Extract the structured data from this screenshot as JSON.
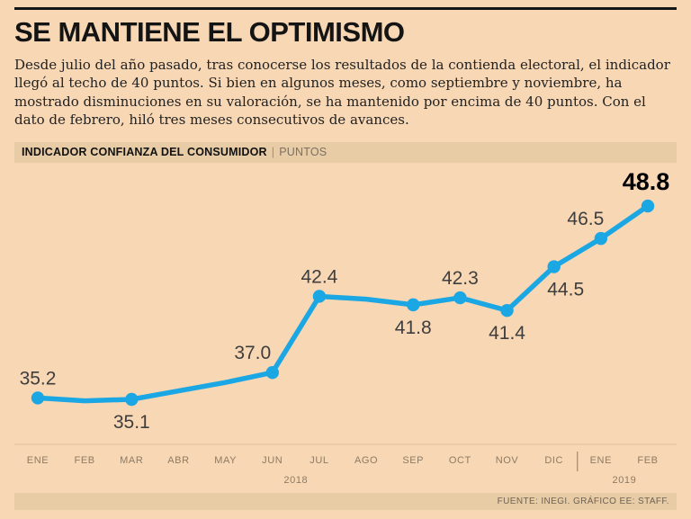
{
  "title": "SE MANTIENE EL OPTIMISMO",
  "description": "Desde julio del año pasado, tras conocerse los resultados de la contienda electoral, el indicador llegó al techo de 40 puntos. Si bien en algunos meses, como septiembre y noviembre, ha mostrado disminuciones en su valoración, se ha mantenido por encima de 40 puntos. Con el dato de febrero, hiló tres meses consecutivos de avances.",
  "chart_header": {
    "label": "INDICADOR CONFIANZA DEL CONSUMIDOR",
    "separator": "|",
    "units": "PUNTOS"
  },
  "footer": {
    "source": "FUENTE: INEGI. GRÁFICO EE: STAFF."
  },
  "colors": {
    "background": "#f8d7b4",
    "panel_bar": "#e7cca6",
    "line": "#1ba7e3",
    "data_label": "#3e3e3e",
    "data_label_emphasis": "#000000",
    "axis_text": "#8d7b63"
  },
  "chart_data": {
    "type": "line",
    "title": "INDICADOR CONFIANZA DEL CONSUMIDOR",
    "ylabel": "PUNTOS",
    "ylim": [
      34,
      50
    ],
    "grid": false,
    "legend": "none",
    "categories": [
      "ENE",
      "FEB",
      "MAR",
      "ABR",
      "MAY",
      "JUN",
      "JUL",
      "AGO",
      "SEP",
      "OCT",
      "NOV",
      "DIC",
      "ENE",
      "FEB"
    ],
    "values": [
      35.2,
      35.0,
      35.1,
      35.7,
      36.3,
      37.0,
      42.4,
      42.2,
      41.8,
      42.3,
      41.4,
      44.5,
      46.5,
      48.8
    ],
    "markers": [
      0,
      2,
      5,
      6,
      8,
      9,
      10,
      11,
      12,
      13
    ],
    "point_labels": [
      {
        "index": 0,
        "text": "35.2",
        "pos": "above",
        "dx": 0
      },
      {
        "index": 2,
        "text": "35.1",
        "pos": "below",
        "dx": 0
      },
      {
        "index": 5,
        "text": "37.0",
        "pos": "above",
        "dx": -22
      },
      {
        "index": 6,
        "text": "42.4",
        "pos": "above",
        "dx": 0
      },
      {
        "index": 8,
        "text": "41.8",
        "pos": "below",
        "dx": 0
      },
      {
        "index": 9,
        "text": "42.3",
        "pos": "above",
        "dx": 0
      },
      {
        "index": 10,
        "text": "41.4",
        "pos": "below",
        "dx": 0
      },
      {
        "index": 11,
        "text": "44.5",
        "pos": "below",
        "dx": 13
      },
      {
        "index": 12,
        "text": "46.5",
        "pos": "above",
        "dx": -17
      },
      {
        "index": 13,
        "text": "48.8",
        "pos": "above",
        "dx": -2,
        "emphasis": true
      }
    ],
    "year_groups": [
      {
        "label": "2018",
        "start": 0,
        "end": 11
      },
      {
        "label": "2019",
        "start": 12,
        "end": 13
      }
    ]
  }
}
